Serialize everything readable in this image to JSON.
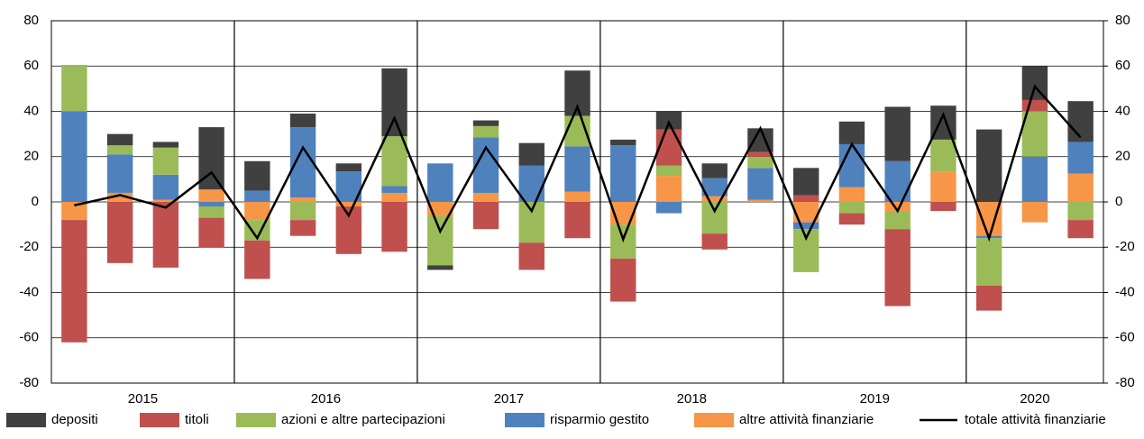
{
  "chart_data": {
    "type": "bar",
    "stacked": true,
    "categories": [
      "2015",
      "2015",
      "2015",
      "2015",
      "2016",
      "2016",
      "2016",
      "2016",
      "2017",
      "2017",
      "2017",
      "2017",
      "2018",
      "2018",
      "2018",
      "2018",
      "2019",
      "2019",
      "2019",
      "2019",
      "2020",
      "2020",
      "2020"
    ],
    "series": [
      {
        "name": "depositi",
        "color": "#404040",
        "values": [
          0,
          5,
          2.5,
          27.5,
          13,
          6,
          3.5,
          30,
          -2,
          2.5,
          10,
          20,
          2.5,
          8,
          6.5,
          10.5,
          12,
          10,
          24,
          15,
          32,
          15,
          18
        ]
      },
      {
        "name": "titoli",
        "color": "#c0504d",
        "values": [
          -54,
          -27,
          -29,
          -13,
          -17,
          -7,
          -21,
          -22,
          0,
          -12,
          -12,
          -16,
          -19,
          16,
          -7,
          2,
          3,
          -5,
          -34,
          -4,
          -11,
          5,
          -8
        ]
      },
      {
        "name": "azioni e altre partecipazioni",
        "color": "#9bbb59",
        "values": [
          20.5,
          4,
          12,
          -5,
          -9,
          -8,
          0,
          22,
          -22,
          5,
          -18,
          13.5,
          -15,
          4.5,
          -14,
          5,
          -19,
          -5,
          -8,
          14,
          -21,
          20,
          -8
        ]
      },
      {
        "name": "risparmio gestito",
        "color": "#4f81bd",
        "values": [
          40,
          17,
          11,
          -2,
          5,
          31,
          13.5,
          3,
          17,
          24.5,
          16,
          20,
          25,
          -5,
          8,
          14,
          -3,
          19,
          18,
          0,
          -1,
          20,
          14
        ]
      },
      {
        "name": "altre attività finanziarie",
        "color": "#f79646",
        "values": [
          -8,
          4,
          1,
          5.5,
          -8,
          2,
          -2,
          4,
          -6,
          4,
          0,
          4.5,
          -10,
          11.5,
          2.5,
          1,
          -9,
          6.5,
          -4,
          13.5,
          -15,
          -9,
          12.5
        ]
      },
      {
        "name": "totale attività finanziarie",
        "type": "line",
        "color": "#000000",
        "values": [
          -1.5,
          3,
          -2.5,
          13,
          -16,
          24,
          -6,
          37,
          -13,
          24,
          -4,
          42,
          -16.5,
          35,
          -4,
          32.5,
          -16,
          25.5,
          -4,
          38.5,
          -16,
          51,
          28.5
        ]
      }
    ],
    "ylim": [
      -80,
      80
    ],
    "yticks": [
      -80,
      -60,
      -40,
      -20,
      0,
      20,
      40,
      60,
      80
    ],
    "y2lim": [
      -80,
      80
    ],
    "y2ticks": [
      -80,
      -60,
      -40,
      -20,
      0,
      20,
      40,
      60,
      80
    ],
    "grid": true,
    "legend": "bottom"
  }
}
